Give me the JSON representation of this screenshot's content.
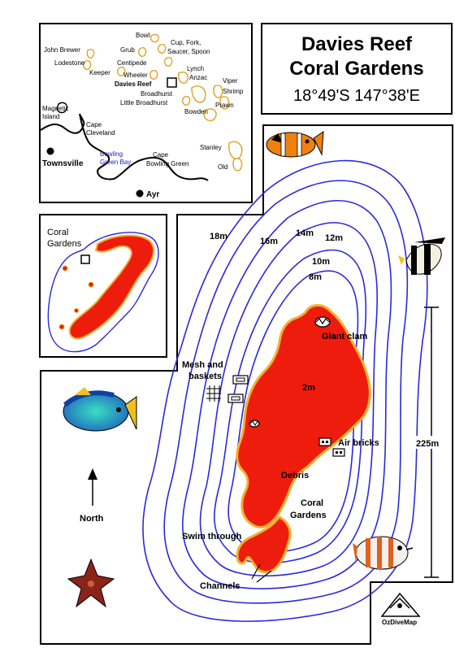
{
  "title": {
    "line1": "Davies Reef",
    "line2": "Coral Gardens",
    "coords": "18°49'S 147°38'E"
  },
  "region_map": {
    "reefs": [
      "Bowl",
      "John Brewer",
      "Grub",
      "Cup, Fork, Saucer, Spoon",
      "Lodestone",
      "Centipede",
      "Keeper",
      "Wheeler",
      "Lynch",
      "Davies Reef",
      "Anzac",
      "Viper",
      "Broadhurst",
      "Shrimp",
      "Little Broadhurst",
      "Prawn",
      "Bowden",
      "Stanley",
      "Old"
    ],
    "places": [
      "Magnetic Island",
      "Cape Cleveland",
      "Townsville",
      "Bowling Green Bay",
      "Cape Bowling Green",
      "Ayr"
    ],
    "magnetic_line1": "Magnetic",
    "magnetic_line2": "Island",
    "cleveland_line1": "Cape",
    "cleveland_line2": "Cleveland",
    "bgb_line1": "Bowling",
    "bgb_line2": "Green Bay",
    "cbg_line1": "Cape",
    "cbg_line2": "Bowling Green",
    "cfss_line1": "Cup, Fork,",
    "cfss_line2": "Saucer, Spoon"
  },
  "reef_inset": {
    "label_line1": "Coral",
    "label_line2": "Gardens"
  },
  "depths": [
    "18m",
    "16m",
    "14m",
    "12m",
    "10m",
    "8m",
    "2m"
  ],
  "features": {
    "giant_clam": "Giant clam",
    "mesh_line1": "Mesh and",
    "mesh_line2": "baskets",
    "air_bricks": "Air bricks",
    "debris": "Debris",
    "coral_line1": "Coral",
    "coral_line2": "Gardens",
    "swim_through": "Swim through",
    "channels": "Channels"
  },
  "scale": "225m",
  "north": "North",
  "credit": "OzDiveMap",
  "colors": {
    "contour": "#2a2ad8",
    "reef_fill": "#ee1c0c",
    "reef_edge": "#f4b030",
    "reef_outline_region": "#e0a020"
  }
}
